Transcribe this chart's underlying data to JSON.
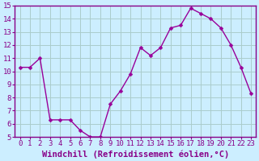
{
  "x": [
    0,
    1,
    2,
    3,
    4,
    5,
    6,
    7,
    8,
    9,
    10,
    11,
    12,
    13,
    14,
    15,
    16,
    17,
    18,
    19,
    20,
    21,
    22,
    23
  ],
  "y": [
    10.3,
    10.3,
    11.0,
    6.3,
    6.3,
    6.3,
    5.5,
    5.0,
    5.0,
    7.5,
    8.5,
    9.8,
    11.8,
    11.2,
    11.8,
    13.3,
    13.5,
    14.8,
    14.4,
    14.0,
    13.3,
    12.0,
    10.3,
    8.3
  ],
  "line_color": "#990099",
  "marker_color": "#990099",
  "bg_color": "#cceeff",
  "grid_color": "#aacccc",
  "xlabel": "Windchill (Refroidissement éolien,°C)",
  "ylim": [
    5,
    15
  ],
  "yticks": [
    5,
    6,
    7,
    8,
    9,
    10,
    11,
    12,
    13,
    14,
    15
  ],
  "xticks": [
    0,
    1,
    2,
    3,
    4,
    5,
    6,
    7,
    8,
    9,
    10,
    11,
    12,
    13,
    14,
    15,
    16,
    17,
    18,
    19,
    20,
    21,
    22,
    23
  ],
  "xlabel_fontsize": 7.5,
  "tick_fontsize": 6.5,
  "line_width": 1.0,
  "marker_size": 2.5,
  "spine_color": "#880088",
  "tick_color": "#880088",
  "label_color": "#880088"
}
